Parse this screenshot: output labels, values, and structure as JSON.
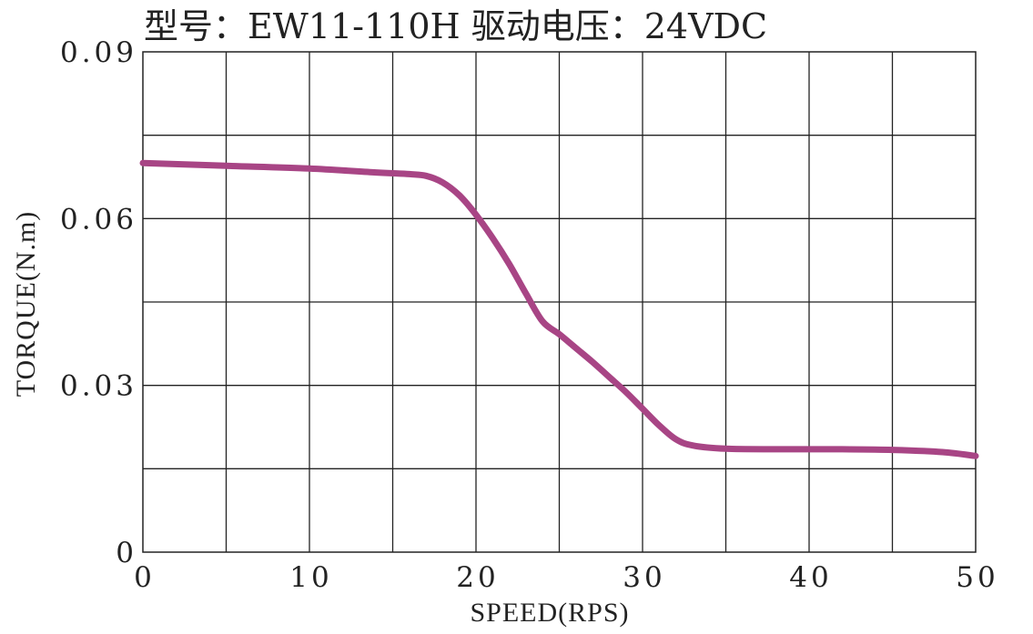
{
  "chart_data": {
    "type": "line",
    "title": "型号：EW11-110H   驱动电压：24VDC",
    "xlabel": "SPEED(RPS)",
    "ylabel": "TORQUE(N.m)",
    "xlim": [
      0,
      50
    ],
    "ylim": [
      0,
      0.09
    ],
    "x_ticks": [
      "0",
      "10",
      "20",
      "30",
      "40",
      "50"
    ],
    "y_ticks": [
      "0",
      "0.03",
      "0.06",
      "0.09"
    ],
    "grid": true,
    "x_grid_step": 5,
    "y_grid_step": 0.015,
    "series": [
      {
        "color": "#a84585",
        "x": [
          0,
          5,
          10,
          14,
          16,
          17,
          18,
          19,
          20,
          21,
          22,
          23,
          24,
          25,
          26,
          27,
          28,
          29,
          30,
          31,
          32,
          33,
          35,
          38,
          40,
          42,
          45,
          48,
          50
        ],
        "y": [
          0.07,
          0.0695,
          0.069,
          0.0683,
          0.068,
          0.0677,
          0.0665,
          0.0642,
          0.0607,
          0.0565,
          0.0518,
          0.0465,
          0.0415,
          0.0392,
          0.0367,
          0.0342,
          0.0315,
          0.0288,
          0.0258,
          0.0228,
          0.0203,
          0.0192,
          0.0186,
          0.0185,
          0.0185,
          0.0185,
          0.0184,
          0.018,
          0.0173
        ]
      }
    ]
  }
}
